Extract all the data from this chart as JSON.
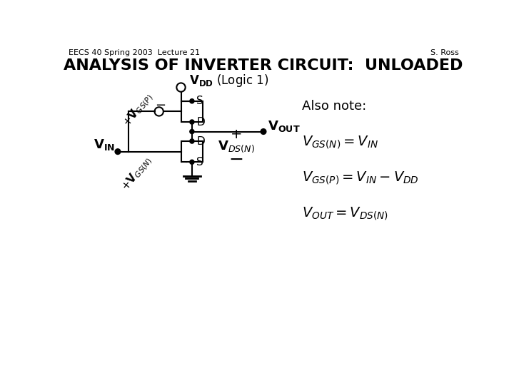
{
  "title": "ANALYSIS OF INVERTER CIRCUIT:  UNLOADED",
  "header_left": "EECS 40 Spring 2003  Lecture 21",
  "header_right": "S. Ross",
  "bg_color": "#ffffff",
  "title_fontsize": 16,
  "header_fontsize": 8,
  "body_fontsize": 13
}
